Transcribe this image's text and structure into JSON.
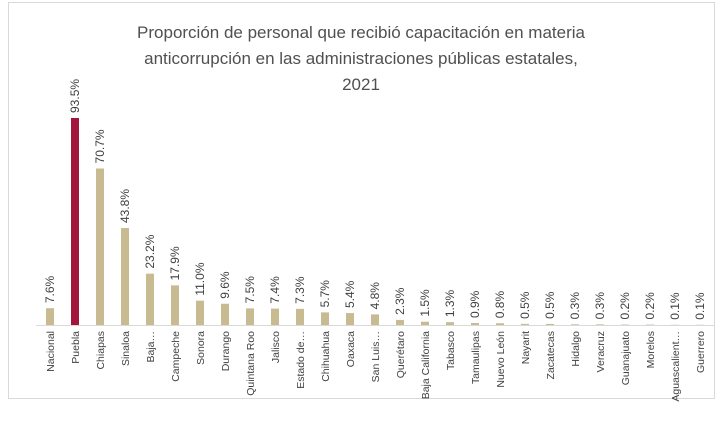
{
  "chart_data": {
    "type": "bar",
    "title": [
      "Proporción de personal que recibió capacitación en materia",
      "anticorrupción en las administraciones públicas estatales,",
      "2021"
    ],
    "categories": [
      "Nacional",
      "Puebla",
      "Chiapas",
      "Sinaloa",
      "Baja…",
      "Campeche",
      "Sonora",
      "Durango",
      "Quintana Roo",
      "Jalisco",
      "Estado de…",
      "Chihuahua",
      "Oaxaca",
      "San Luis…",
      "Querétaro",
      "Baja California",
      "Tabasco",
      "Tamaulipas",
      "Nuevo León",
      "Nayarit",
      "Zacatecas",
      "Hidalgo",
      "Veracruz",
      "Guanajuato",
      "Morelos",
      "Aguascalient…",
      "Guerrero"
    ],
    "values": [
      7.6,
      93.5,
      70.7,
      43.8,
      23.2,
      17.9,
      11.0,
      9.6,
      7.5,
      7.4,
      7.3,
      5.7,
      5.4,
      4.8,
      2.3,
      1.5,
      1.3,
      0.9,
      0.8,
      0.5,
      0.5,
      0.3,
      0.3,
      0.2,
      0.2,
      0.1,
      0.1
    ],
    "value_labels": [
      "7.6%",
      "93.5%",
      "70.7%",
      "43.8%",
      "23.2%",
      "17.9%",
      "11.0%",
      "9.6%",
      "7.5%",
      "7.4%",
      "7.3%",
      "5.7%",
      "5.4%",
      "4.8%",
      "2.3%",
      "1.5%",
      "1.3%",
      "0.9%",
      "0.8%",
      "0.5%",
      "0.5%",
      "0.3%",
      "0.3%",
      "0.2%",
      "0.2%",
      "0.1%",
      "0.1%"
    ],
    "colors": [
      "#c9bb91",
      "#a3153d",
      "#c9bb91",
      "#c9bb91",
      "#c9bb91",
      "#c9bb91",
      "#c9bb91",
      "#c9bb91",
      "#c9bb91",
      "#c9bb91",
      "#c9bb91",
      "#c9bb91",
      "#c9bb91",
      "#c9bb91",
      "#c9bb91",
      "#c9bb91",
      "#c9bb91",
      "#c9bb91",
      "#c9bb91",
      "#c9bb91",
      "#c9bb91",
      "#c9bb91",
      "#c9bb91",
      "#c9bb91",
      "#c9bb91",
      "#c9bb91",
      "#c9bb91"
    ]
  }
}
